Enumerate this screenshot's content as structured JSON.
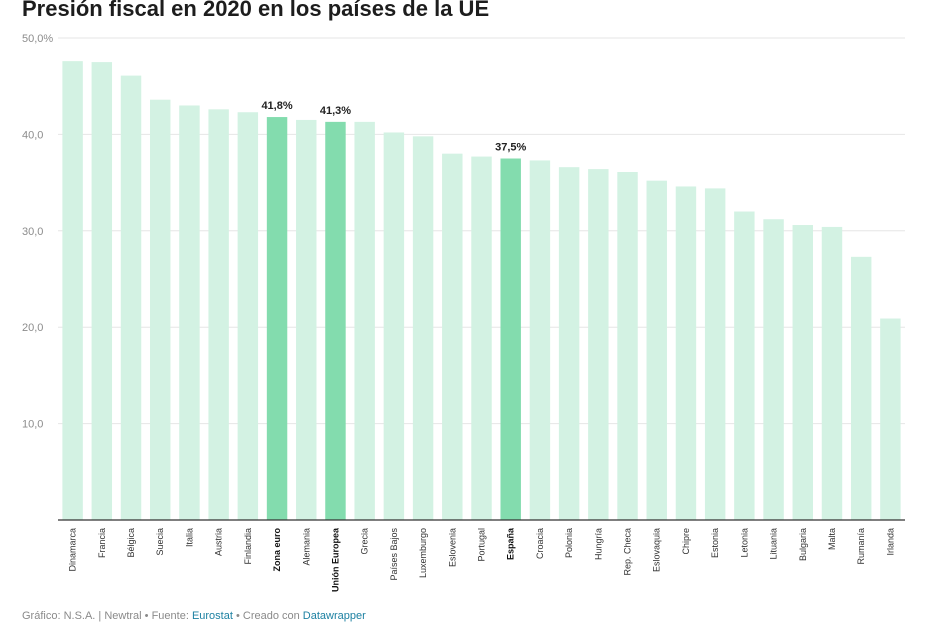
{
  "title": "Presión fiscal en 2020 en los países de la UE",
  "footer": {
    "prefix": "Gráfico: N.S.A. | Newtral • Fuente: ",
    "source_link": "Eurostat",
    "middle": " • Creado con ",
    "tool_link": "Datawrapper"
  },
  "chart_data": {
    "type": "bar",
    "title": "Presión fiscal en 2020 en los países de la UE",
    "xlabel": "",
    "ylabel": "",
    "ylim": [
      0,
      50
    ],
    "yticks": [
      10,
      20,
      30,
      40,
      50
    ],
    "ytick_labels": [
      "10,0",
      "20,0",
      "30,0",
      "40,0",
      "50,0%"
    ],
    "grid": true,
    "colors": {
      "default": "#d3f2e3",
      "highlight": "#83dcae",
      "axis": "#333333",
      "grid": "#e6e6e6"
    },
    "categories": [
      "Dinamarca",
      "Francia",
      "Bélgica",
      "Suecia",
      "Italia",
      "Austria",
      "Finlandia",
      "Zona euro",
      "Alemania",
      "Unión Europea",
      "Grecia",
      "Países Bajos",
      "Luxemburgo",
      "Eslovenia",
      "Portugal",
      "España",
      "Croacia",
      "Polonia",
      "Hungría",
      "Rep. Checa",
      "Eslovaquia",
      "Chipre",
      "Estonia",
      "Letonia",
      "Lituania",
      "Bulgaria",
      "Malta",
      "Rumanía",
      "Irlanda"
    ],
    "values": [
      47.6,
      47.5,
      46.1,
      43.6,
      43.0,
      42.6,
      42.3,
      41.8,
      41.5,
      41.3,
      41.3,
      40.2,
      39.8,
      38.0,
      37.7,
      37.5,
      37.3,
      36.6,
      36.4,
      36.1,
      35.2,
      34.6,
      34.4,
      32.0,
      31.2,
      30.6,
      30.4,
      27.3,
      20.9
    ],
    "highlighted": [
      "Zona euro",
      "Unión Europea",
      "España"
    ],
    "data_labels": [
      {
        "category": "Zona euro",
        "text": "41,8%"
      },
      {
        "category": "Unión Europea",
        "text": "41,3%"
      },
      {
        "category": "España",
        "text": "37,5%"
      }
    ]
  }
}
